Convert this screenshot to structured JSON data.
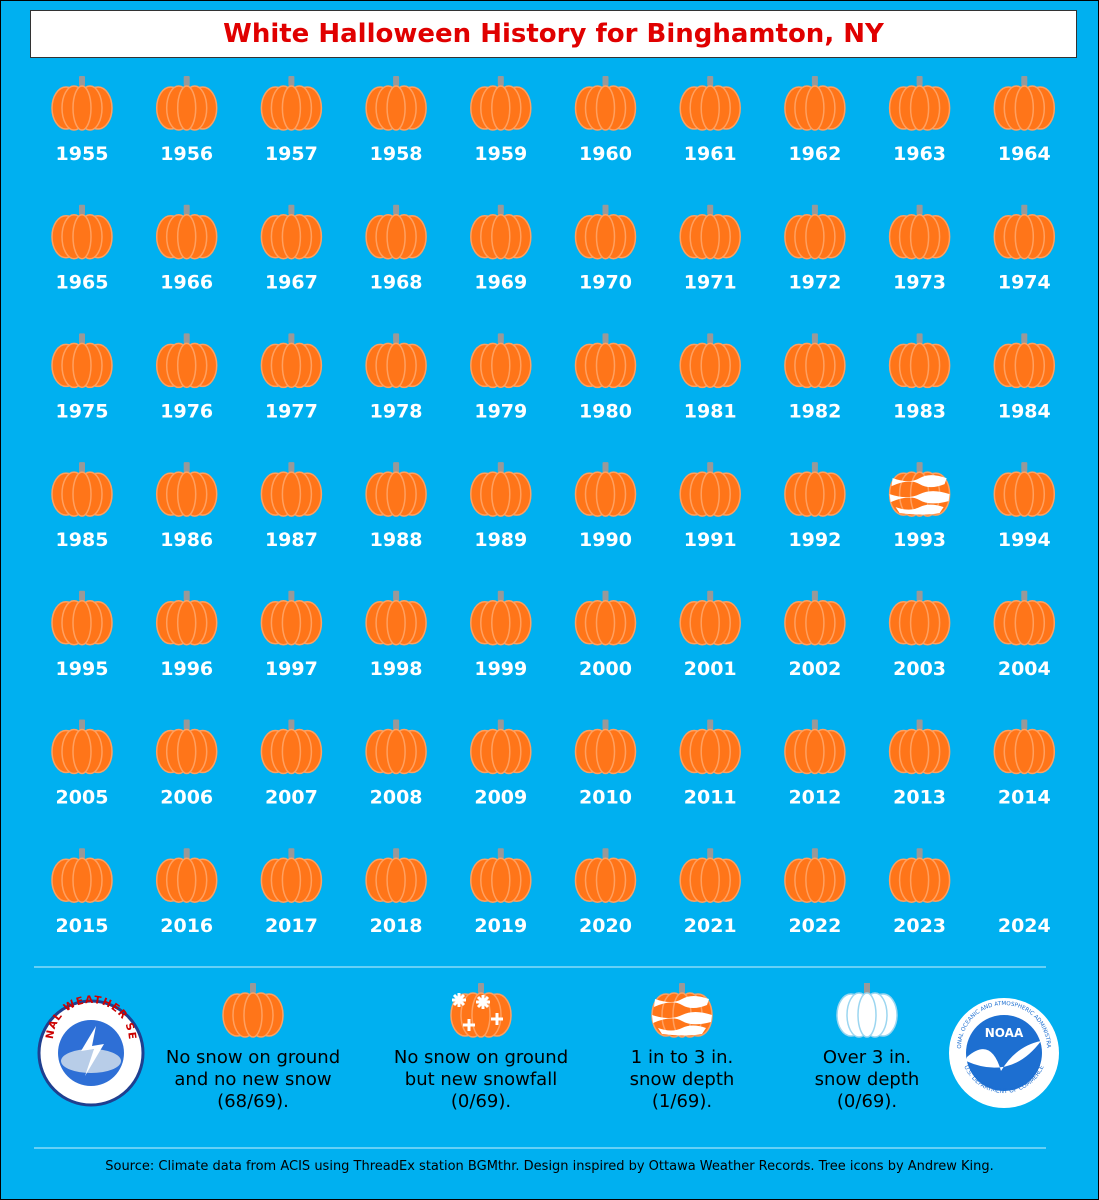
{
  "title": "White Halloween History for Binghamton, NY",
  "years": [
    {
      "year": "1955",
      "icon": "none"
    },
    {
      "year": "1956",
      "icon": "none"
    },
    {
      "year": "1957",
      "icon": "none"
    },
    {
      "year": "1958",
      "icon": "none"
    },
    {
      "year": "1959",
      "icon": "none"
    },
    {
      "year": "1960",
      "icon": "none"
    },
    {
      "year": "1961",
      "icon": "none"
    },
    {
      "year": "1962",
      "icon": "none"
    },
    {
      "year": "1963",
      "icon": "none"
    },
    {
      "year": "1964",
      "icon": "none"
    },
    {
      "year": "1965",
      "icon": "none"
    },
    {
      "year": "1966",
      "icon": "none"
    },
    {
      "year": "1967",
      "icon": "none"
    },
    {
      "year": "1968",
      "icon": "none"
    },
    {
      "year": "1969",
      "icon": "none"
    },
    {
      "year": "1970",
      "icon": "none"
    },
    {
      "year": "1971",
      "icon": "none"
    },
    {
      "year": "1972",
      "icon": "none"
    },
    {
      "year": "1973",
      "icon": "none"
    },
    {
      "year": "1974",
      "icon": "none"
    },
    {
      "year": "1975",
      "icon": "none"
    },
    {
      "year": "1976",
      "icon": "none"
    },
    {
      "year": "1977",
      "icon": "none"
    },
    {
      "year": "1978",
      "icon": "none"
    },
    {
      "year": "1979",
      "icon": "none"
    },
    {
      "year": "1980",
      "icon": "none"
    },
    {
      "year": "1981",
      "icon": "none"
    },
    {
      "year": "1982",
      "icon": "none"
    },
    {
      "year": "1983",
      "icon": "none"
    },
    {
      "year": "1984",
      "icon": "none"
    },
    {
      "year": "1985",
      "icon": "none"
    },
    {
      "year": "1986",
      "icon": "none"
    },
    {
      "year": "1987",
      "icon": "none"
    },
    {
      "year": "1988",
      "icon": "none"
    },
    {
      "year": "1989",
      "icon": "none"
    },
    {
      "year": "1990",
      "icon": "none"
    },
    {
      "year": "1991",
      "icon": "none"
    },
    {
      "year": "1992",
      "icon": "none"
    },
    {
      "year": "1993",
      "icon": "depth"
    },
    {
      "year": "1994",
      "icon": "none"
    },
    {
      "year": "1995",
      "icon": "none"
    },
    {
      "year": "1996",
      "icon": "none"
    },
    {
      "year": "1997",
      "icon": "none"
    },
    {
      "year": "1998",
      "icon": "none"
    },
    {
      "year": "1999",
      "icon": "none"
    },
    {
      "year": "2000",
      "icon": "none"
    },
    {
      "year": "2001",
      "icon": "none"
    },
    {
      "year": "2002",
      "icon": "none"
    },
    {
      "year": "2003",
      "icon": "none"
    },
    {
      "year": "2004",
      "icon": "none"
    },
    {
      "year": "2005",
      "icon": "none"
    },
    {
      "year": "2006",
      "icon": "none"
    },
    {
      "year": "2007",
      "icon": "none"
    },
    {
      "year": "2008",
      "icon": "none"
    },
    {
      "year": "2009",
      "icon": "none"
    },
    {
      "year": "2010",
      "icon": "none"
    },
    {
      "year": "2011",
      "icon": "none"
    },
    {
      "year": "2012",
      "icon": "none"
    },
    {
      "year": "2013",
      "icon": "none"
    },
    {
      "year": "2014",
      "icon": "none"
    },
    {
      "year": "2015",
      "icon": "none"
    },
    {
      "year": "2016",
      "icon": "none"
    },
    {
      "year": "2017",
      "icon": "none"
    },
    {
      "year": "2018",
      "icon": "none"
    },
    {
      "year": "2019",
      "icon": "none"
    },
    {
      "year": "2020",
      "icon": "none"
    },
    {
      "year": "2021",
      "icon": "none"
    },
    {
      "year": "2022",
      "icon": "none"
    },
    {
      "year": "2023",
      "icon": "none"
    },
    {
      "year": "2024",
      "icon": null
    }
  ],
  "legend": [
    {
      "icon": "none",
      "text": "No snow on ground and no new snow (68/69)."
    },
    {
      "icon": "snowfall",
      "text": "No snow on ground but new snowfall (0/69)."
    },
    {
      "icon": "depth",
      "text": "1 in to 3 in. snow depth (1/69)."
    },
    {
      "icon": "deep",
      "text": "Over 3 in. snow depth (0/69)."
    }
  ],
  "nws_logo": "NATIONAL WEATHER SERVICE",
  "noaa_logo": {
    "name": "NOAA",
    "ring_top": "NATIONAL OCEANIC AND ATMOSPHERIC ADMINISTRATION",
    "ring_bottom": "U.S. DEPARTMENT OF COMMERCE"
  },
  "source": "Source: Climate data from ACIS using ThreadEx station BGMthr. Design inspired by Ottawa Weather Records. Tree icons by Andrew King."
}
